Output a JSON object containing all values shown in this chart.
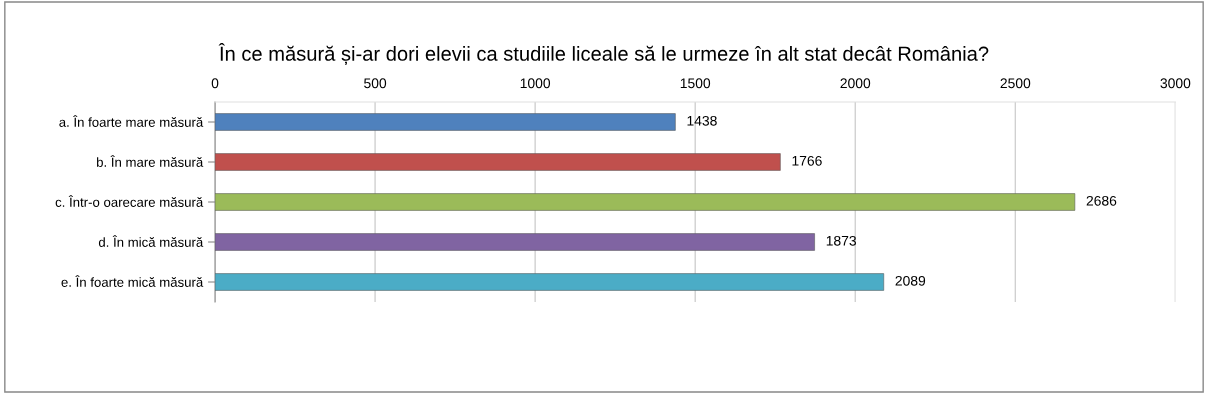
{
  "chart_data": {
    "type": "bar",
    "orientation": "horizontal",
    "title": "În ce măsură și-ar dori elevii ca studiile liceale să le urmeze în alt stat decât România?",
    "categories": [
      "a. În foarte mare măsură",
      "b. În mare măsură",
      "c. Într-o oarecare măsură",
      "d. În mică măsură",
      "e. În foarte mică măsură"
    ],
    "values": [
      1438,
      1766,
      2686,
      1873,
      2089
    ],
    "colors": [
      "#4f81bd",
      "#c0504d",
      "#9bbb59",
      "#8064a2",
      "#4bacc6"
    ],
    "xlim": [
      0,
      3000
    ],
    "xticks": [
      0,
      500,
      1000,
      1500,
      2000,
      2500,
      3000
    ],
    "grid": "x",
    "data_labels": true
  }
}
